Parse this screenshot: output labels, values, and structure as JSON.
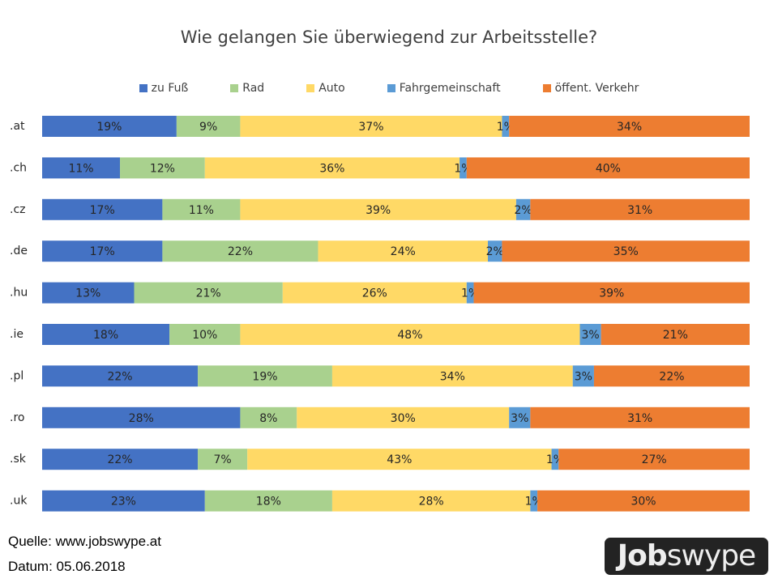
{
  "chart_data": {
    "type": "bar",
    "orientation": "horizontal",
    "stacked": "100%",
    "title": "Wie gelangen Sie überwiegend zur Arbeitsstelle?",
    "legend_position": "top",
    "grid": false,
    "categories": [
      ".at",
      ".ch",
      ".cz",
      ".de",
      ".hu",
      ".ie",
      ".pl",
      ".ro",
      ".sk",
      ".uk"
    ],
    "series": [
      {
        "name": "zu Fuß",
        "color": "#4472C4",
        "values": [
          19,
          11,
          17,
          17,
          13,
          18,
          22,
          28,
          22,
          23
        ]
      },
      {
        "name": "Rad",
        "color": "#A9D18E",
        "values": [
          9,
          12,
          11,
          22,
          21,
          10,
          19,
          8,
          7,
          18
        ]
      },
      {
        "name": "Auto",
        "color": "#FFD966",
        "values": [
          37,
          36,
          39,
          24,
          26,
          48,
          34,
          30,
          43,
          28
        ]
      },
      {
        "name": "Fahrgemeinschaft",
        "color": "#5B9BD5",
        "values": [
          1,
          1,
          2,
          2,
          1,
          3,
          3,
          3,
          1,
          1
        ]
      },
      {
        "name": "öffent. Verkehr",
        "color": "#ED7D31",
        "values": [
          34,
          40,
          31,
          35,
          39,
          21,
          22,
          31,
          27,
          30
        ]
      }
    ],
    "value_suffix": "%"
  },
  "footer": {
    "source": "Quelle: www.jobswype.at",
    "date": "Datum: 05.06.2018"
  },
  "logo": {
    "text_bold": "Job",
    "text_light": "swype"
  }
}
